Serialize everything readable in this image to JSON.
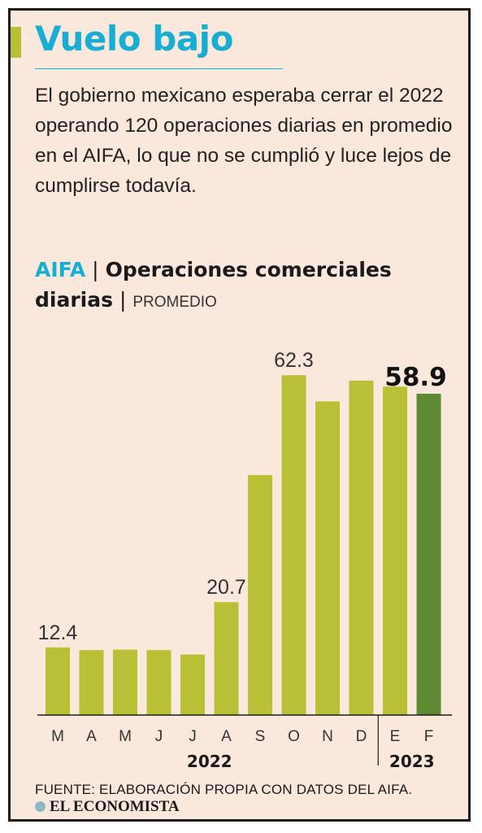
{
  "header": {
    "title": "Vuelo bajo",
    "intro": "El gobierno mexicano esperaba cerrar el 2022 operando 120 operaciones diarias en promedio en el AIFA, lo que no se cumplió y luce lejos de cumplirse todavía."
  },
  "chart_header": {
    "brand": "AIFA",
    "separator": "|",
    "title": "Operaciones comerciales diarias",
    "subtitle": "PROMEDIO"
  },
  "chart_data": {
    "type": "bar",
    "categories": [
      "M",
      "A",
      "M",
      "J",
      "J",
      "A",
      "S",
      "O",
      "N",
      "D",
      "E",
      "F"
    ],
    "groups": [
      {
        "label": "2022",
        "from": 0,
        "to": 9
      },
      {
        "label": "2023",
        "from": 10,
        "to": 11
      }
    ],
    "values": [
      12.4,
      11.9,
      12.0,
      11.9,
      11.1,
      20.7,
      44.0,
      62.3,
      57.5,
      61.3,
      60.2,
      58.9
    ],
    "data_labels": [
      {
        "index": 0,
        "text": "12.4"
      },
      {
        "index": 5,
        "text": "20.7"
      },
      {
        "index": 7,
        "text": "62.3"
      },
      {
        "index": 11,
        "text": "58.9",
        "emphasis": true
      }
    ],
    "ylim": [
      0,
      68
    ],
    "colors": {
      "bar": "#b8c036",
      "highlight": "#5e8a33",
      "axis": "#1a1a1a",
      "label": "#333333"
    },
    "grid": false,
    "legend": "none"
  },
  "footer": {
    "source": "FUENTE: ELABORACIÓN PROPIA CON DATOS DEL AIFA.",
    "logo": "EL ECONOMISTA"
  }
}
